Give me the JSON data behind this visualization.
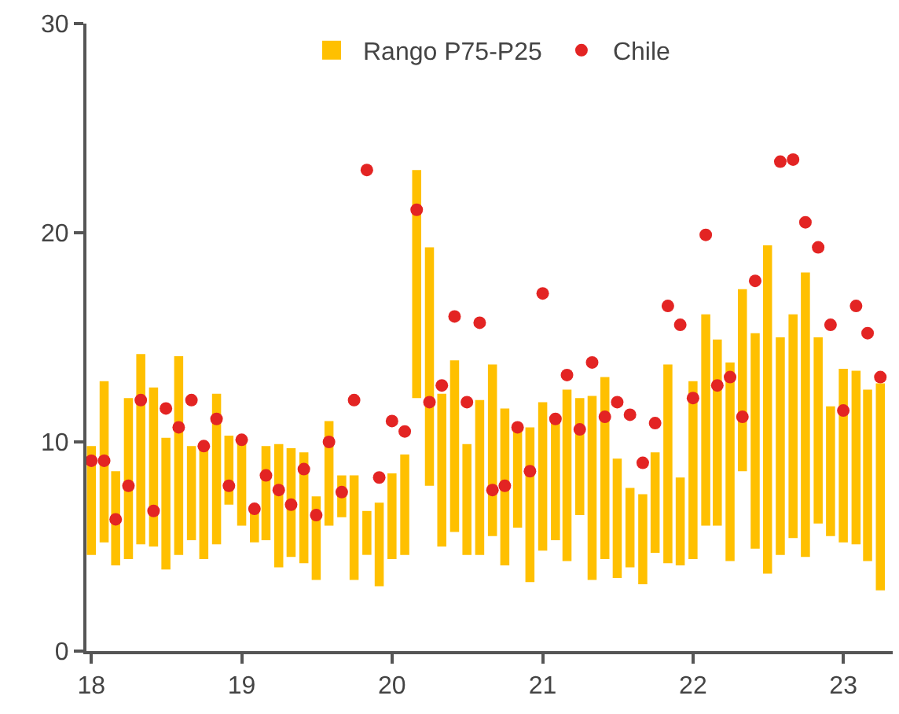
{
  "chart_data": {
    "type": "bar",
    "legend": "top",
    "x": [
      "2018-01",
      "2018-02",
      "2018-03",
      "2018-04",
      "2018-05",
      "2018-06",
      "2018-07",
      "2018-08",
      "2018-09",
      "2018-10",
      "2018-11",
      "2018-12",
      "2019-01",
      "2019-02",
      "2019-03",
      "2019-04",
      "2019-05",
      "2019-06",
      "2019-07",
      "2019-08",
      "2019-09",
      "2019-10",
      "2019-11",
      "2019-12",
      "2020-01",
      "2020-02",
      "2020-03",
      "2020-04",
      "2020-05",
      "2020-06",
      "2020-07",
      "2020-08",
      "2020-09",
      "2020-10",
      "2020-11",
      "2020-12",
      "2021-01",
      "2021-02",
      "2021-03",
      "2021-04",
      "2021-05",
      "2021-06",
      "2021-07",
      "2021-08",
      "2021-09",
      "2021-10",
      "2021-11",
      "2021-12",
      "2022-01",
      "2022-02",
      "2022-03",
      "2022-04",
      "2022-05",
      "2022-06",
      "2022-07",
      "2022-08",
      "2022-09",
      "2022-10",
      "2022-11",
      "2022-12",
      "2023-01",
      "2023-02",
      "2023-03",
      "2023-04"
    ],
    "xlim": [
      "2017-12-20",
      "2023-05-01"
    ],
    "xticks": [
      {
        "value": "2018-01-01",
        "label": "18"
      },
      {
        "value": "2019-01-01",
        "label": "19"
      },
      {
        "value": "2020-01-01",
        "label": "20"
      },
      {
        "value": "2021-01-01",
        "label": "21"
      },
      {
        "value": "2022-01-01",
        "label": "22"
      },
      {
        "value": "2023-01-01",
        "label": "23"
      }
    ],
    "ylim": [
      0,
      30
    ],
    "yticks": [
      0,
      10,
      20,
      30
    ],
    "series": [
      {
        "name": "Rango P75-P25",
        "color": "#ffc000",
        "base": [
          4.6,
          5.2,
          4.1,
          4.4,
          5.1,
          5.0,
          3.9,
          4.6,
          5.3,
          4.4,
          5.1,
          7.0,
          6.0,
          5.2,
          5.3,
          4.0,
          4.5,
          4.2,
          3.4,
          6.0,
          6.4,
          3.4,
          4.6,
          3.1,
          4.4,
          4.6,
          12.1,
          7.9,
          5.0,
          5.7,
          4.6,
          4.6,
          5.5,
          4.1,
          5.9,
          3.3,
          4.8,
          5.3,
          4.3,
          6.5,
          3.4,
          4.4,
          3.5,
          4.0,
          3.2,
          4.7,
          4.2,
          4.1,
          4.4,
          6.0,
          6.0,
          4.3,
          8.6,
          4.9,
          3.7,
          4.6,
          5.4,
          4.5,
          6.1,
          5.5,
          5.2,
          5.1,
          4.3,
          2.9
        ],
        "values": [
          5.2,
          7.7,
          4.5,
          7.7,
          9.1,
          7.6,
          6.3,
          9.5,
          4.5,
          5.4,
          7.2,
          3.3,
          4.1,
          1.6,
          4.5,
          5.9,
          5.2,
          5.3,
          4.0,
          5.0,
          2.0,
          5.0,
          2.1,
          4.0,
          4.1,
          4.8,
          10.9,
          11.4,
          7.3,
          8.2,
          5.3,
          7.4,
          8.2,
          7.5,
          4.7,
          7.4,
          7.1,
          5.7,
          8.2,
          5.6,
          8.8,
          8.7,
          5.7,
          3.8,
          4.3,
          4.8,
          9.5,
          4.2,
          8.5,
          10.1,
          8.9,
          9.5,
          8.7,
          10.3,
          15.7,
          10.4,
          10.7,
          13.6,
          8.9,
          6.2,
          8.3,
          8.3,
          8.2,
          9.9
        ]
      },
      {
        "name": "Chile",
        "type": "scatter",
        "marker": "circle",
        "color": "#e32423",
        "values": [
          9.1,
          9.1,
          6.3,
          7.9,
          12.0,
          6.7,
          11.6,
          10.7,
          12.0,
          9.8,
          11.1,
          7.9,
          10.1,
          6.8,
          8.4,
          7.7,
          7.0,
          8.7,
          6.5,
          10.0,
          7.6,
          12.0,
          23.0,
          8.3,
          11.0,
          10.5,
          21.1,
          11.9,
          12.7,
          16.0,
          11.9,
          15.7,
          7.7,
          7.9,
          10.7,
          8.6,
          17.1,
          11.1,
          13.2,
          10.6,
          13.8,
          11.2,
          11.9,
          11.3,
          9.0,
          10.9,
          16.5,
          15.6,
          12.1,
          19.9,
          12.7,
          13.1,
          11.2,
          17.7,
          null,
          23.4,
          23.5,
          20.5,
          19.3,
          15.6,
          11.5,
          16.5,
          15.2,
          13.1
        ]
      }
    ]
  }
}
